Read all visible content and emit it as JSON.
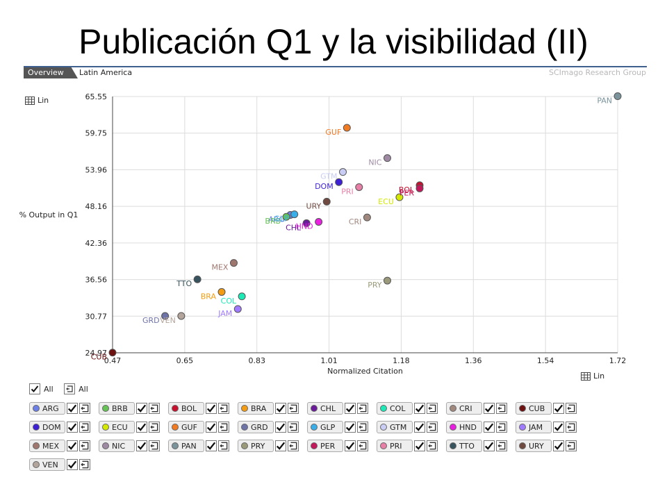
{
  "slide_title": "Publicación Q1 y la visibilidad (II)",
  "tabs": {
    "overview": "Overview",
    "region": "Latin America"
  },
  "credit": "SCImago Research Group",
  "y_scale_button": "Lin",
  "x_scale_button": "Lin",
  "select_all": [
    "All",
    "All"
  ],
  "chart_data": {
    "type": "scatter",
    "xlabel": "Normalized Citation",
    "ylabel": "% Output in Q1",
    "xlim": [
      0.47,
      1.72
    ],
    "ylim": [
      24.97,
      65.55
    ],
    "xticks": [
      "0.47",
      "0.65",
      "0.83",
      "1.01",
      "1.18",
      "1.36",
      "1.54",
      "1.72"
    ],
    "yticks": [
      "24.97",
      "30.77",
      "36.56",
      "42.36",
      "48.16",
      "53.96",
      "59.75",
      "65.55"
    ],
    "grid": true,
    "points": [
      {
        "code": "ARG",
        "x": 0.91,
        "y": 46.8,
        "color": "#6b7fe6"
      },
      {
        "code": "BRB",
        "x": 0.9,
        "y": 46.5,
        "color": "#66c355"
      },
      {
        "code": "BOL",
        "x": 1.23,
        "y": 51.5,
        "color": "#c8102e"
      },
      {
        "code": "BRA",
        "x": 0.74,
        "y": 34.6,
        "color": "#f39c12"
      },
      {
        "code": "CHL",
        "x": 0.95,
        "y": 45.5,
        "color": "#6a1b9a"
      },
      {
        "code": "COL",
        "x": 0.79,
        "y": 33.9,
        "color": "#1de9b6"
      },
      {
        "code": "CRI",
        "x": 1.1,
        "y": 46.4,
        "color": "#a1887f"
      },
      {
        "code": "CUB",
        "x": 0.47,
        "y": 25.0,
        "color": "#6d1010"
      },
      {
        "code": "DOM",
        "x": 1.03,
        "y": 52.0,
        "color": "#3d1fd6"
      },
      {
        "code": "ECU",
        "x": 1.18,
        "y": 49.6,
        "color": "#d4e800"
      },
      {
        "code": "GUF",
        "x": 1.05,
        "y": 60.6,
        "color": "#f27a21"
      },
      {
        "code": "GRD",
        "x": 0.6,
        "y": 30.8,
        "color": "#6e73a8"
      },
      {
        "code": "GLP",
        "x": 0.92,
        "y": 46.9,
        "color": "#3aaee8"
      },
      {
        "code": "GTM",
        "x": 1.04,
        "y": 53.6,
        "color": "#c9cdf3"
      },
      {
        "code": "HND",
        "x": 0.98,
        "y": 45.7,
        "color": "#e91ee0"
      },
      {
        "code": "JAM",
        "x": 0.78,
        "y": 31.9,
        "color": "#a17bff"
      },
      {
        "code": "MEX",
        "x": 0.77,
        "y": 39.2,
        "color": "#a0776f"
      },
      {
        "code": "NIC",
        "x": 1.15,
        "y": 55.8,
        "color": "#9e8aa3"
      },
      {
        "code": "PAN",
        "x": 1.72,
        "y": 65.6,
        "color": "#7b949c"
      },
      {
        "code": "PRY",
        "x": 1.15,
        "y": 36.4,
        "color": "#9a9a7a"
      },
      {
        "code": "PER",
        "x": 1.23,
        "y": 51.0,
        "color": "#c2185b"
      },
      {
        "code": "PRI",
        "x": 1.08,
        "y": 51.2,
        "color": "#e77fa6"
      },
      {
        "code": "TTO",
        "x": 0.68,
        "y": 36.6,
        "color": "#37535e"
      },
      {
        "code": "URY",
        "x": 1.0,
        "y": 48.9,
        "color": "#704a40"
      },
      {
        "code": "VEN",
        "x": 0.64,
        "y": 30.8,
        "color": "#b3a59c"
      }
    ]
  },
  "legend": [
    {
      "code": "ARG",
      "color": "#6b7fe6"
    },
    {
      "code": "BRB",
      "color": "#66c355"
    },
    {
      "code": "BOL",
      "color": "#c8102e"
    },
    {
      "code": "BRA",
      "color": "#f39c12"
    },
    {
      "code": "CHL",
      "color": "#6a1b9a"
    },
    {
      "code": "COL",
      "color": "#1de9b6"
    },
    {
      "code": "CRI",
      "color": "#a1887f"
    },
    {
      "code": "CUB",
      "color": "#6d1010"
    },
    {
      "code": "DOM",
      "color": "#3d1fd6"
    },
    {
      "code": "ECU",
      "color": "#d4e800"
    },
    {
      "code": "GUF",
      "color": "#f27a21"
    },
    {
      "code": "GRD",
      "color": "#6e73a8"
    },
    {
      "code": "GLP",
      "color": "#3aaee8"
    },
    {
      "code": "GTM",
      "color": "#c9cdf3"
    },
    {
      "code": "HND",
      "color": "#e91ee0"
    },
    {
      "code": "JAM",
      "color": "#a17bff"
    },
    {
      "code": "MEX",
      "color": "#a0776f"
    },
    {
      "code": "NIC",
      "color": "#9e8aa3"
    },
    {
      "code": "PAN",
      "color": "#7b949c"
    },
    {
      "code": "PRY",
      "color": "#9a9a7a"
    },
    {
      "code": "PER",
      "color": "#c2185b"
    },
    {
      "code": "PRI",
      "color": "#e77fa6"
    },
    {
      "code": "TTO",
      "color": "#37535e"
    },
    {
      "code": "URY",
      "color": "#704a40"
    },
    {
      "code": "VEN",
      "color": "#b3a59c"
    }
  ]
}
